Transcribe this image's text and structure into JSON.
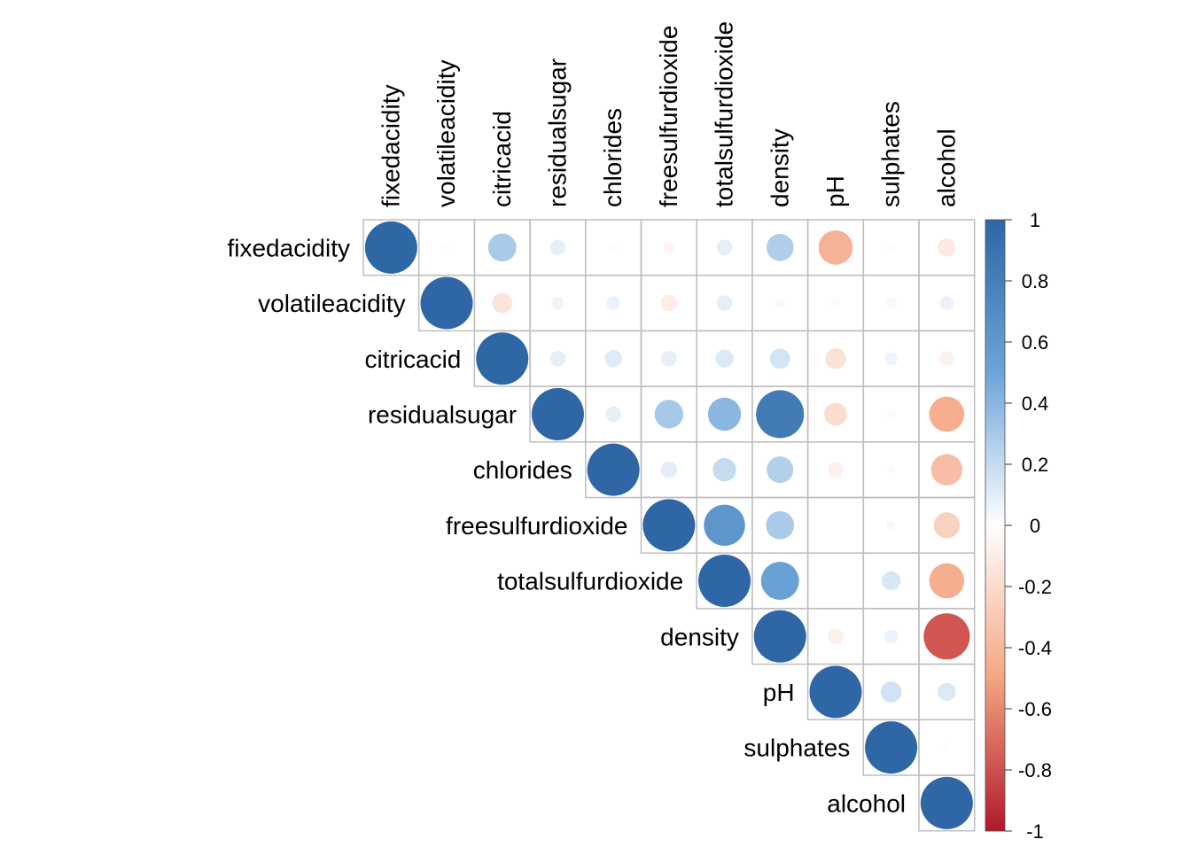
{
  "chart_data": {
    "type": "heatmap",
    "style": "corrplot-upper-circles",
    "variables": [
      "fixedacidity",
      "volatileacidity",
      "citricacid",
      "residualsugar",
      "chlorides",
      "freesulfurdioxide",
      "totalsulfurdioxide",
      "density",
      "pH",
      "sulphates",
      "alcohol"
    ],
    "matrix": [
      [
        1.0,
        -0.02,
        0.29,
        0.09,
        0.02,
        -0.05,
        0.09,
        0.27,
        -0.43,
        -0.02,
        -0.12
      ],
      [
        -0.02,
        1.0,
        -0.15,
        0.06,
        0.07,
        -0.1,
        0.09,
        0.03,
        -0.03,
        -0.04,
        0.07
      ],
      [
        0.29,
        -0.15,
        1.0,
        0.09,
        0.11,
        0.09,
        0.12,
        0.15,
        -0.16,
        0.06,
        -0.08
      ],
      [
        0.09,
        0.06,
        0.09,
        1.0,
        0.09,
        0.3,
        0.4,
        0.84,
        -0.19,
        -0.03,
        -0.45
      ],
      [
        0.02,
        0.07,
        0.11,
        0.09,
        1.0,
        0.1,
        0.2,
        0.26,
        -0.09,
        0.02,
        -0.36
      ],
      [
        -0.05,
        -0.1,
        0.09,
        0.3,
        0.1,
        1.0,
        0.62,
        0.29,
        0.0,
        0.03,
        -0.25
      ],
      [
        0.09,
        0.09,
        0.12,
        0.4,
        0.2,
        0.62,
        1.0,
        0.53,
        0.0,
        0.13,
        -0.45
      ],
      [
        0.27,
        0.03,
        0.15,
        0.84,
        0.26,
        0.29,
        0.53,
        1.0,
        -0.09,
        0.07,
        -0.78
      ],
      [
        -0.43,
        -0.03,
        -0.16,
        -0.19,
        -0.09,
        0.0,
        0.0,
        -0.09,
        1.0,
        0.16,
        0.12
      ],
      [
        -0.02,
        -0.04,
        0.06,
        -0.03,
        0.02,
        0.03,
        0.13,
        0.07,
        0.16,
        1.0,
        -0.02
      ],
      [
        -0.12,
        0.07,
        -0.08,
        -0.45,
        -0.36,
        -0.25,
        -0.45,
        -0.78,
        0.12,
        -0.02,
        1.0
      ]
    ],
    "colorbar": {
      "range": [
        -1,
        1
      ],
      "ticks": [
        "1",
        "0.8",
        "0.6",
        "0.4",
        "0.2",
        "0",
        "-0.2",
        "-0.4",
        "-0.6",
        "-0.8",
        "-1"
      ],
      "colors": {
        "negative_end": "#B2182B",
        "mid_negative": "#F4A582",
        "zero": "#FFFFFF",
        "mid_positive": "#6DA4D9",
        "positive_end": "#2E66A6"
      }
    },
    "grid": true,
    "legend_position": "right"
  }
}
